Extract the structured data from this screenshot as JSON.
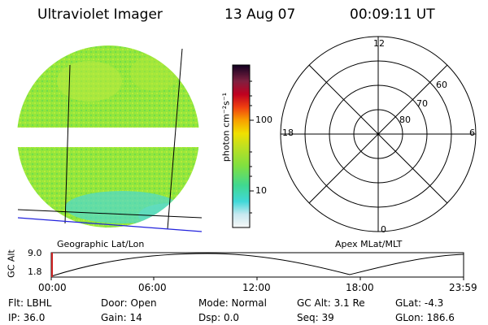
{
  "header": {
    "instrument": "Ultraviolet Imager",
    "date": "13 Aug 07",
    "time": "00:09:11  UT"
  },
  "colorbar": {
    "unit_label": "photon cm⁻²s⁻¹",
    "ticks": [
      "100",
      "10"
    ]
  },
  "polar_plot": {
    "mlt_labels": [
      "12",
      "18",
      "6",
      "0"
    ],
    "lat_labels": [
      "60",
      "70",
      "80"
    ]
  },
  "panel_labels": {
    "left": "Geographic Lat/Lon",
    "right": "Apex  MLat/MLT"
  },
  "altitude_plot": {
    "ylabel": "GC Alt",
    "yticks": [
      "9.0",
      "1.8"
    ],
    "xticks": [
      "00:00",
      "06:00",
      "12:00",
      "18:00",
      "23:59"
    ]
  },
  "status": {
    "flt": "Flt: LBHL",
    "ip": "IP: 36.0",
    "door": "Door: Open",
    "gain": "Gain: 14",
    "mode": "Mode: Normal",
    "dsp": "Dsp:     0.0",
    "gc_alt": "GC Alt: 3.1 Re",
    "seq": "Seq: 39",
    "glat": "GLat:   -4.3",
    "glon": "GLon: 186.6"
  },
  "colors": {
    "image_green": "#8fe63a",
    "image_cyan": "#4fd8d0",
    "trace_blue": "#2222dd"
  }
}
